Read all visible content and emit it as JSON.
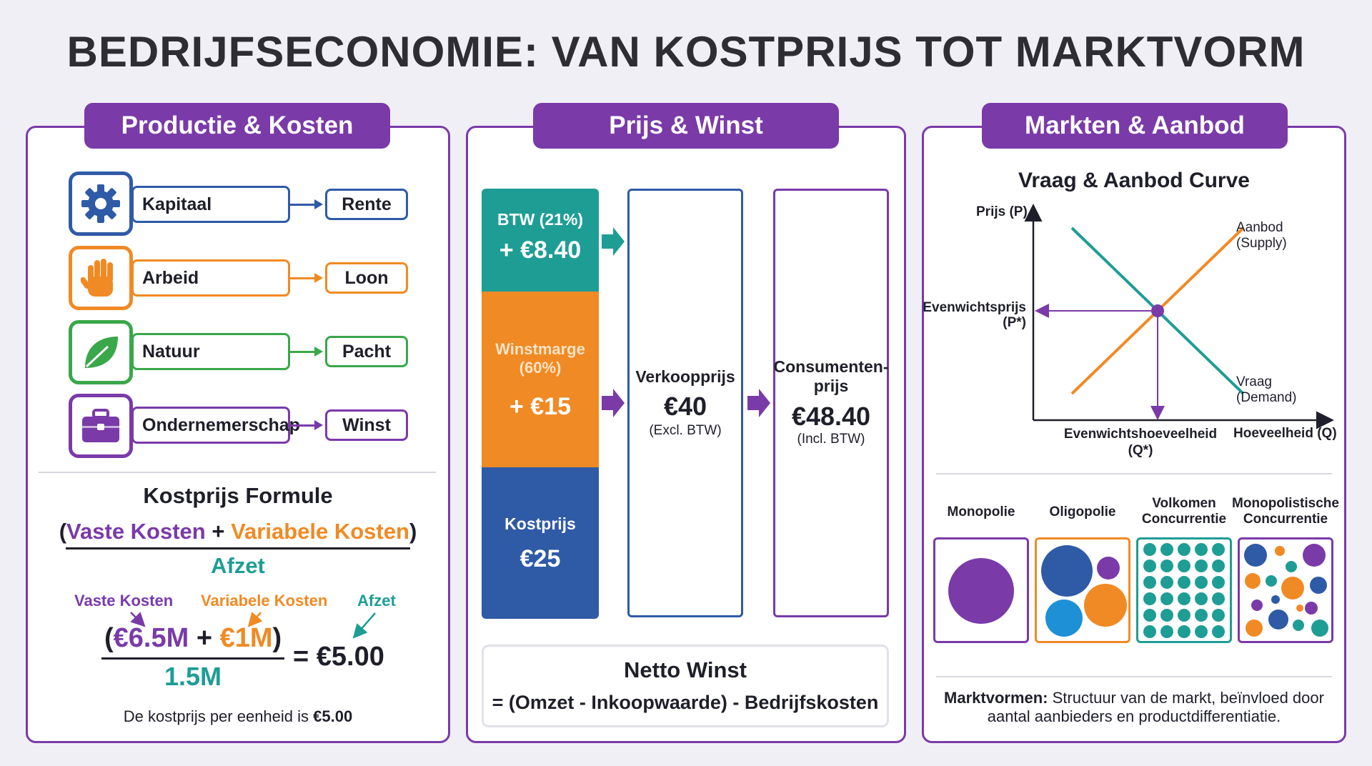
{
  "title": "BEDRIJFSECONOMIE: VAN KOSTPRIJS TOT MARKTVORM",
  "panels": {
    "production": {
      "header": "Productie & Kosten",
      "factors": [
        {
          "label": "Kapitaal",
          "result": "Rente",
          "icon": "gear-icon",
          "color": "#2f5aa6"
        },
        {
          "label": "Arbeid",
          "result": "Loon",
          "icon": "hand-icon",
          "color": "#f08a24"
        },
        {
          "label": "Natuur",
          "result": "Pacht",
          "icon": "leaf-icon",
          "color": "#3aa74a"
        },
        {
          "label": "Ondernemerschap",
          "result": "Winst",
          "icon": "briefcase-icon",
          "color": "#7a3aa8"
        }
      ],
      "formula": {
        "title": "Kostprijs Formule",
        "open_paren": "(",
        "fixed": "Vaste Kosten",
        "plus": " + ",
        "variable": "Variabele Kosten",
        "close_paren": ")",
        "denominator": "Afzet",
        "example": {
          "fixed_label": "Vaste Kosten",
          "variable_label": "Variabele Kosten",
          "afzet_label": "Afzet",
          "open_paren": "(",
          "fixed_value": "€6.5M",
          "plus": " + ",
          "variable_value": "€1M",
          "close_paren": ")",
          "denominator": "1.5M",
          "result": "= €5.00",
          "conclusion_prefix": "De kostprijs per eenheid is ",
          "conclusion_value": "€5.00"
        }
      }
    },
    "price": {
      "header": "Prijs & Winst",
      "stack": {
        "btw_label": "BTW (21%)",
        "btw_value": "+ €8.40",
        "margin_label": "Winstmarge\n(60%)",
        "margin_value": "+ €15",
        "cost_label": "Kostprijs",
        "cost_value": "€25"
      },
      "selling": {
        "label": "Verkoopprijs",
        "value": "€40",
        "note": "(Excl. BTW)"
      },
      "consumer": {
        "label": "Consumenten-\nprijs",
        "value": "€48.40",
        "note": "(Incl. BTW)"
      },
      "net_profit": {
        "title": "Netto Winst",
        "formula": "= (Omzet - Inkoopwaarde) - Bedrijfskosten"
      }
    },
    "markets": {
      "header": "Markten & Aanbod",
      "chart_data": {
        "type": "line",
        "title": "Vraag & Aanbod Curve",
        "xlabel": "Hoeveelheid (Q)",
        "ylabel": "Prijs (P)",
        "series": [
          {
            "name": "Aanbod\n(Supply)",
            "color": "#f08a24",
            "points": [
              [
                0.1,
                0.1
              ],
              [
                0.9,
                0.9
              ]
            ]
          },
          {
            "name": "Vraag\n(Demand)",
            "color": "#1e9d95",
            "points": [
              [
                0.1,
                0.9
              ],
              [
                0.9,
                0.1
              ]
            ]
          }
        ],
        "equilibrium": {
          "x": 0.5,
          "y": 0.5,
          "price_label": "Evenwichtsprijs\n(P*)",
          "quantity_label": "Evenwichtshoeveelheid\n(Q*)"
        }
      },
      "market_forms": [
        {
          "label": "Monopolie",
          "color": "#7a3aa8"
        },
        {
          "label": "Oligopolie",
          "color": "#f08a24"
        },
        {
          "label": "Volkomen\nConcurrentie",
          "color": "#1e9d95"
        },
        {
          "label": "Monopolistische\nConcurrentie",
          "color": "#7a3aa8"
        }
      ],
      "footer_bold": "Marktvormen:",
      "footer_text": " Structuur van de markt, beïnvloed door\naantal aanbieders en productdifferentiatie."
    }
  }
}
